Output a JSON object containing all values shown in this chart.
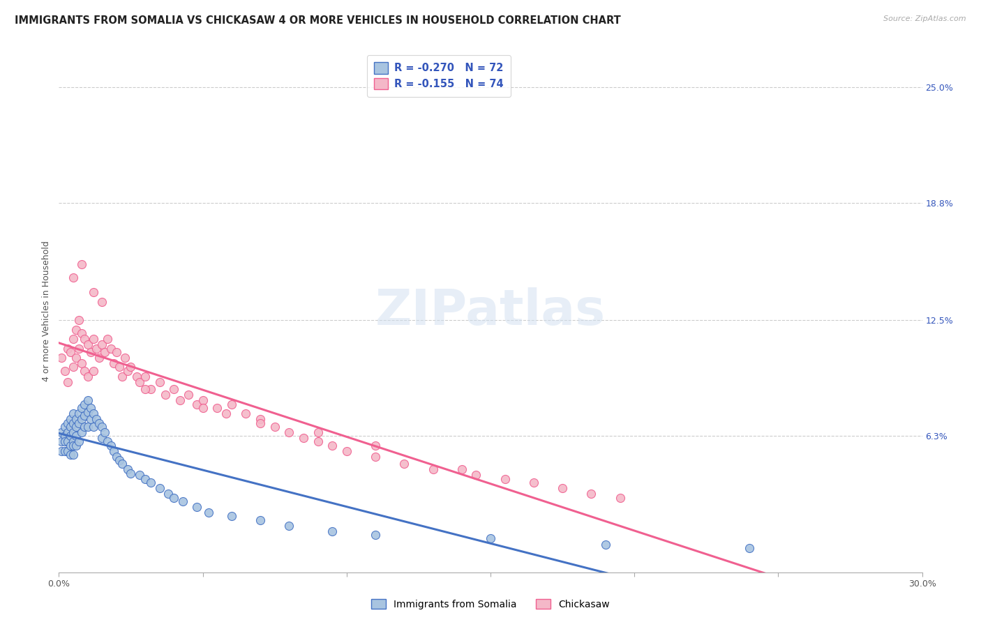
{
  "title": "IMMIGRANTS FROM SOMALIA VS CHICKASAW 4 OR MORE VEHICLES IN HOUSEHOLD CORRELATION CHART",
  "source": "Source: ZipAtlas.com",
  "ylabel": "4 or more Vehicles in Household",
  "ytick_labels": [
    "25.0%",
    "18.8%",
    "12.5%",
    "6.3%"
  ],
  "ytick_values": [
    0.25,
    0.188,
    0.125,
    0.063
  ],
  "xlim": [
    0.0,
    0.3
  ],
  "ylim": [
    -0.01,
    0.27
  ],
  "legend_somalia": "Immigrants from Somalia",
  "legend_chickasaw": "Chickasaw",
  "r_somalia": -0.27,
  "n_somalia": 72,
  "r_chickasaw": -0.155,
  "n_chickasaw": 74,
  "color_somalia": "#a8c4e0",
  "color_chickasaw": "#f4b8c8",
  "color_somalia_line": "#4472c4",
  "color_chickasaw_line": "#f06090",
  "color_r_text": "#3355bb",
  "background_color": "#ffffff",
  "grid_color": "#cccccc",
  "title_fontsize": 10.5,
  "axis_label_fontsize": 9,
  "tick_fontsize": 9,
  "somalia_x": [
    0.001,
    0.001,
    0.001,
    0.002,
    0.002,
    0.002,
    0.002,
    0.003,
    0.003,
    0.003,
    0.003,
    0.004,
    0.004,
    0.004,
    0.004,
    0.004,
    0.005,
    0.005,
    0.005,
    0.005,
    0.005,
    0.005,
    0.006,
    0.006,
    0.006,
    0.006,
    0.007,
    0.007,
    0.007,
    0.008,
    0.008,
    0.008,
    0.009,
    0.009,
    0.009,
    0.01,
    0.01,
    0.01,
    0.011,
    0.011,
    0.012,
    0.012,
    0.013,
    0.014,
    0.015,
    0.015,
    0.016,
    0.017,
    0.018,
    0.019,
    0.02,
    0.021,
    0.022,
    0.024,
    0.025,
    0.028,
    0.03,
    0.032,
    0.035,
    0.038,
    0.04,
    0.043,
    0.048,
    0.052,
    0.06,
    0.07,
    0.08,
    0.095,
    0.11,
    0.15,
    0.19,
    0.24
  ],
  "somalia_y": [
    0.065,
    0.06,
    0.055,
    0.068,
    0.063,
    0.06,
    0.055,
    0.07,
    0.065,
    0.06,
    0.055,
    0.072,
    0.068,
    0.063,
    0.058,
    0.053,
    0.075,
    0.07,
    0.065,
    0.06,
    0.058,
    0.053,
    0.072,
    0.068,
    0.063,
    0.058,
    0.075,
    0.07,
    0.06,
    0.078,
    0.072,
    0.065,
    0.08,
    0.074,
    0.068,
    0.082,
    0.076,
    0.068,
    0.078,
    0.072,
    0.075,
    0.068,
    0.072,
    0.07,
    0.068,
    0.062,
    0.065,
    0.06,
    0.058,
    0.055,
    0.052,
    0.05,
    0.048,
    0.045,
    0.043,
    0.042,
    0.04,
    0.038,
    0.035,
    0.032,
    0.03,
    0.028,
    0.025,
    0.022,
    0.02,
    0.018,
    0.015,
    0.012,
    0.01,
    0.008,
    0.005,
    0.003
  ],
  "chickasaw_x": [
    0.001,
    0.002,
    0.003,
    0.003,
    0.004,
    0.005,
    0.005,
    0.006,
    0.006,
    0.007,
    0.007,
    0.008,
    0.008,
    0.009,
    0.009,
    0.01,
    0.01,
    0.011,
    0.012,
    0.012,
    0.013,
    0.014,
    0.015,
    0.016,
    0.017,
    0.018,
    0.019,
    0.02,
    0.021,
    0.022,
    0.023,
    0.024,
    0.025,
    0.027,
    0.028,
    0.03,
    0.032,
    0.035,
    0.037,
    0.04,
    0.042,
    0.045,
    0.048,
    0.05,
    0.055,
    0.058,
    0.06,
    0.065,
    0.07,
    0.075,
    0.08,
    0.085,
    0.09,
    0.095,
    0.1,
    0.11,
    0.12,
    0.13,
    0.145,
    0.155,
    0.165,
    0.175,
    0.185,
    0.195,
    0.03,
    0.05,
    0.07,
    0.09,
    0.11,
    0.14,
    0.005,
    0.008,
    0.012,
    0.015
  ],
  "chickasaw_y": [
    0.105,
    0.098,
    0.11,
    0.092,
    0.108,
    0.115,
    0.1,
    0.12,
    0.105,
    0.125,
    0.11,
    0.118,
    0.102,
    0.115,
    0.098,
    0.112,
    0.095,
    0.108,
    0.115,
    0.098,
    0.11,
    0.105,
    0.112,
    0.108,
    0.115,
    0.11,
    0.102,
    0.108,
    0.1,
    0.095,
    0.105,
    0.098,
    0.1,
    0.095,
    0.092,
    0.095,
    0.088,
    0.092,
    0.085,
    0.088,
    0.082,
    0.085,
    0.08,
    0.082,
    0.078,
    0.075,
    0.08,
    0.075,
    0.072,
    0.068,
    0.065,
    0.062,
    0.06,
    0.058,
    0.055,
    0.052,
    0.048,
    0.045,
    0.042,
    0.04,
    0.038,
    0.035,
    0.032,
    0.03,
    0.088,
    0.078,
    0.07,
    0.065,
    0.058,
    0.045,
    0.148,
    0.155,
    0.14,
    0.135
  ]
}
